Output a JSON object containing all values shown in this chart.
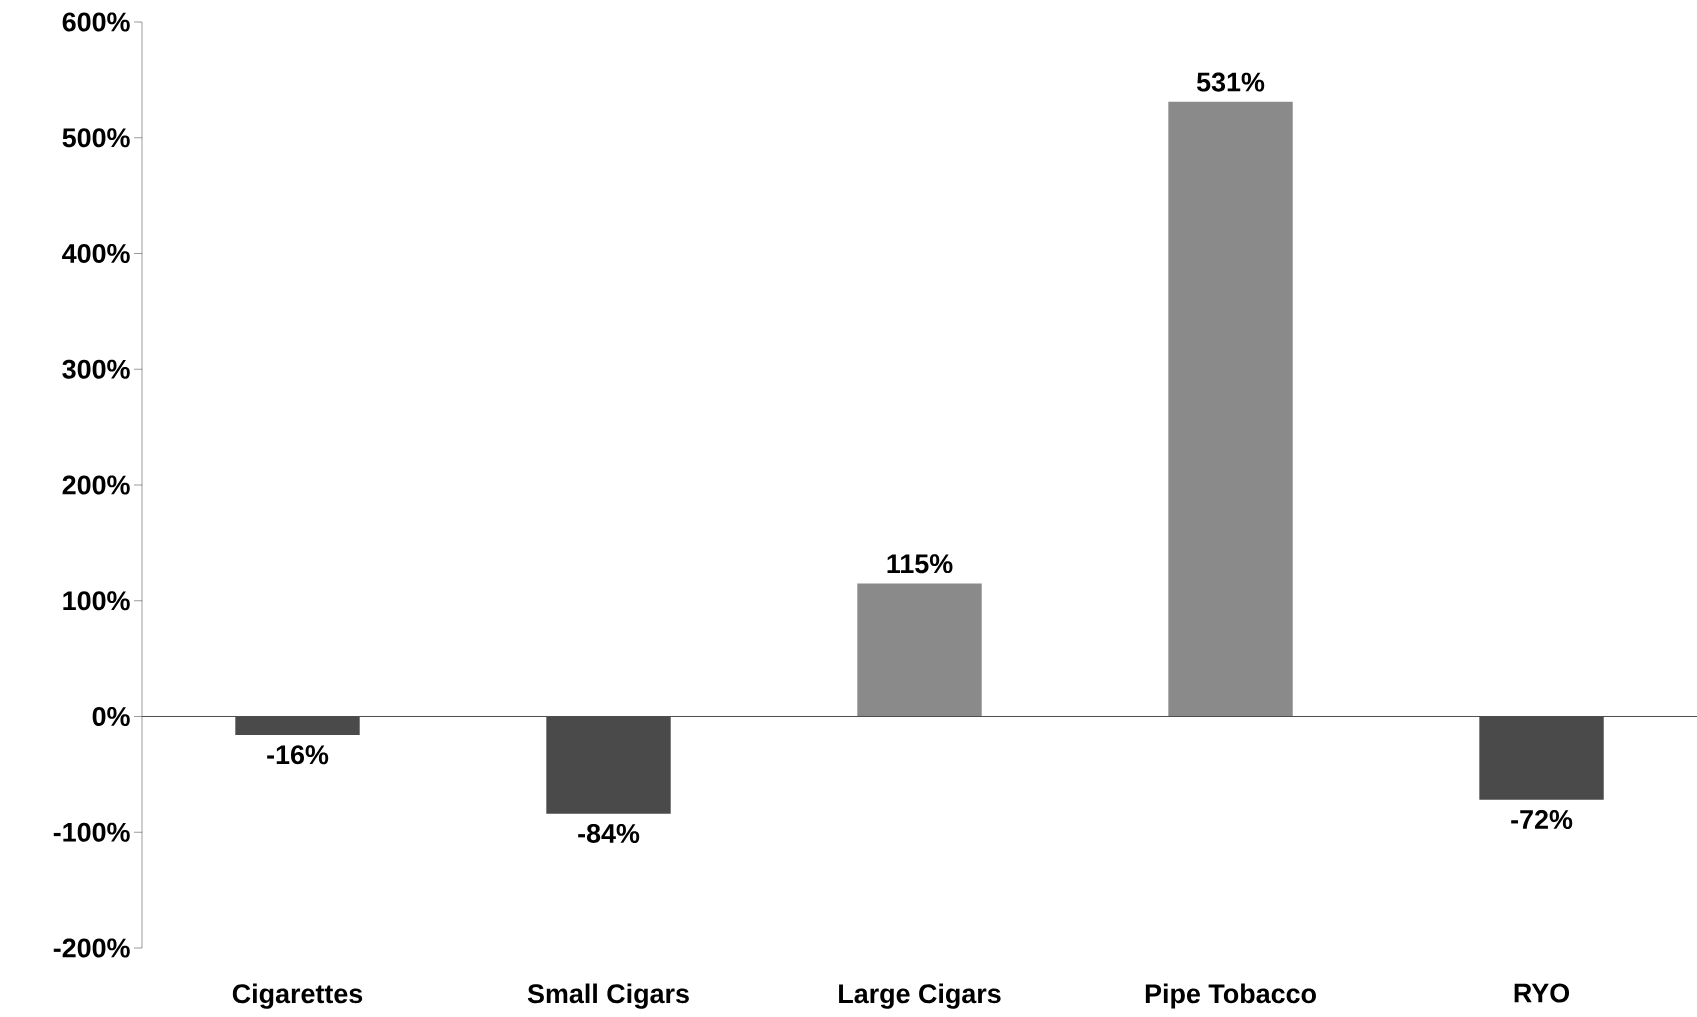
{
  "chart_data": {
    "type": "bar",
    "categories": [
      "Cigarettes",
      "Small Cigars",
      "Large Cigars",
      "Pipe Tobacco",
      "RYO"
    ],
    "values": [
      -16,
      -84,
      115,
      531,
      -72
    ],
    "value_labels": [
      "-16%",
      "-84%",
      "115%",
      "531%",
      "-72%"
    ],
    "colors": [
      "#4a4a4a",
      "#4a4a4a",
      "#8a8a8a",
      "#8a8a8a",
      "#4a4a4a"
    ],
    "ylim": [
      -200,
      600
    ],
    "yticks": [
      {
        "value": -200,
        "label": "-200%"
      },
      {
        "value": -100,
        "label": "-100%"
      },
      {
        "value": 0,
        "label": "0%"
      },
      {
        "value": 100,
        "label": "100%"
      },
      {
        "value": 200,
        "label": "200%"
      },
      {
        "value": 300,
        "label": "300%"
      },
      {
        "value": 400,
        "label": "400%"
      },
      {
        "value": 500,
        "label": "500%"
      },
      {
        "value": 600,
        "label": "600%"
      }
    ]
  }
}
